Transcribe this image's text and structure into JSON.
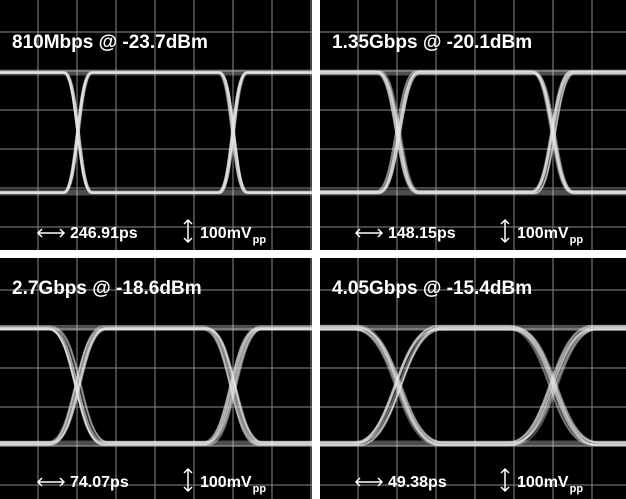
{
  "panels": [
    {
      "title": "810Mbps @ -23.7dBm",
      "time_scale": "246.91ps",
      "amplitude": "100mV",
      "amplitude_subscript": "pp"
    },
    {
      "title": "1.35Gbps @ -20.1dBm",
      "time_scale": "148.15ps",
      "amplitude": "100mV",
      "amplitude_subscript": "pp"
    },
    {
      "title": "2.7Gbps @ -18.6dBm",
      "time_scale": "74.07ps",
      "amplitude": "100mV",
      "amplitude_subscript": "pp"
    },
    {
      "title": "4.05Gbps @ -15.4dBm",
      "time_scale": "49.38ps",
      "amplitude": "100mV",
      "amplitude_subscript": "pp"
    }
  ]
}
